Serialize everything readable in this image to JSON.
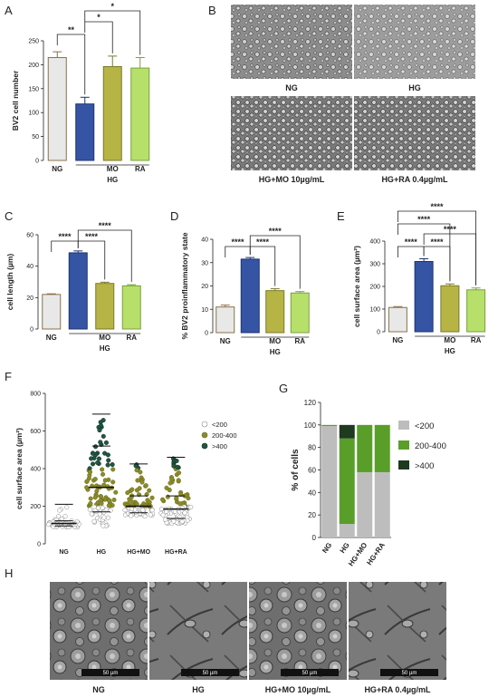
{
  "panel_labels": [
    "A",
    "B",
    "C",
    "D",
    "E",
    "F",
    "G",
    "H"
  ],
  "micrograph_b": {
    "captions": [
      "NG",
      "HG",
      "HG+MO 10µg/mL",
      "HG+RA 0.4µg/mL"
    ]
  },
  "micrograph_h": {
    "captions": [
      "NG",
      "HG",
      "HG+MO 10µg/mL",
      "HG+RA 0.4µg/mL"
    ],
    "scale_bar": "50 µm"
  },
  "colors": {
    "NG": "#e8e8e8",
    "HG": "#3554a4",
    "MO": "#b6b444",
    "RA": "#b6e06a",
    "edge_NG": "#8a7048",
    "lt200": "#bdbdbd",
    "r200_400": "#5a9e2a",
    "gt400": "#1f3a1f",
    "dot_lt200": "#ffffff",
    "dot_mid": "#8b8b2a",
    "dot_gt400": "#1e5a3a"
  },
  "chart_data": [
    {
      "id": "A",
      "type": "bar",
      "categories": [
        "NG",
        "HG",
        "MO",
        "RA"
      ],
      "group_label": "HG",
      "values": [
        215,
        118,
        196,
        193
      ],
      "errors": [
        12,
        14,
        22,
        22
      ],
      "ylabel": "BV2 cell number",
      "ylim": [
        0,
        250
      ],
      "yticks": [
        0,
        50,
        100,
        150,
        200,
        250
      ],
      "significance": [
        {
          "from": 0,
          "to": 1,
          "label": "**"
        },
        {
          "from": 1,
          "to": 2,
          "label": "*"
        },
        {
          "from": 1,
          "to": 3,
          "label": "*"
        }
      ]
    },
    {
      "id": "C",
      "type": "bar",
      "categories": [
        "NG",
        "HG",
        "MO",
        "RA"
      ],
      "group_label": "HG",
      "values": [
        22,
        48.5,
        29,
        27.5
      ],
      "errors": [
        0.4,
        1.2,
        0.8,
        0.7
      ],
      "ylabel": "cell length (µm)",
      "ylim": [
        0,
        60
      ],
      "yticks": [
        0,
        20,
        40,
        60
      ],
      "significance": [
        {
          "from": 0,
          "to": 1,
          "label": "****"
        },
        {
          "from": 1,
          "to": 2,
          "label": "****"
        },
        {
          "from": 1,
          "to": 3,
          "label": "****"
        }
      ]
    },
    {
      "id": "D",
      "type": "bar",
      "categories": [
        "NG",
        "HG",
        "MO",
        "RA"
      ],
      "group_label": "HG",
      "values": [
        11,
        31.5,
        18,
        17
      ],
      "errors": [
        0.8,
        0.7,
        0.8,
        0.6
      ],
      "ylabel": "% BV2 proinflammatory state",
      "ylim": [
        0,
        40
      ],
      "yticks": [
        0,
        10,
        20,
        30,
        40
      ],
      "significance": [
        {
          "from": 0,
          "to": 1,
          "label": "****"
        },
        {
          "from": 1,
          "to": 2,
          "label": "****"
        },
        {
          "from": 1,
          "to": 3,
          "label": "****"
        }
      ]
    },
    {
      "id": "E",
      "type": "bar",
      "categories": [
        "NG",
        "HG",
        "MO",
        "RA"
      ],
      "group_label": "HG",
      "values": [
        107,
        310,
        203,
        185
      ],
      "errors": [
        4,
        12,
        8,
        8
      ],
      "ylabel": "cell surface area (µm²)",
      "ylim": [
        0,
        400
      ],
      "yticks": [
        0,
        100,
        200,
        300,
        400
      ],
      "significance": [
        {
          "from": 0,
          "to": 1,
          "label": "****"
        },
        {
          "from": 1,
          "to": 2,
          "label": "****"
        },
        {
          "from": 1,
          "to": 3,
          "label": "****"
        },
        {
          "from": 0,
          "to": 2,
          "label": "****"
        },
        {
          "from": 0,
          "to": 3,
          "label": "****"
        }
      ]
    },
    {
      "id": "F",
      "type": "scatter",
      "categories": [
        "NG",
        "HG",
        "HG+MO",
        "HG+RA"
      ],
      "ylabel": "cell surface area (µm²)",
      "ylim": [
        0,
        800
      ],
      "yticks": [
        0,
        200,
        400,
        600,
        800
      ],
      "legend": [
        "<200",
        "200-400",
        ">400"
      ],
      "summary": [
        {
          "median": 108,
          "q1": 95,
          "q3": 122,
          "max": 210,
          "n": 55
        },
        {
          "median": 300,
          "q1": 170,
          "q3": 520,
          "max": 690,
          "n": 110
        },
        {
          "median": 200,
          "q1": 165,
          "q3": 255,
          "max": 425,
          "n": 90
        },
        {
          "median": 185,
          "q1": 135,
          "q3": 255,
          "max": 460,
          "n": 100
        }
      ]
    },
    {
      "id": "G",
      "type": "bar",
      "stacked": true,
      "categories": [
        "NG",
        "HG",
        "HG+MO",
        "HG+RA"
      ],
      "ylabel": "% of cells",
      "ylim": [
        0,
        120
      ],
      "yticks": [
        0,
        20,
        40,
        60,
        80,
        100,
        120
      ],
      "series": [
        {
          "name": "<200",
          "values": [
            99,
            12,
            58,
            58
          ]
        },
        {
          "name": "200-400",
          "values": [
            1,
            76,
            42,
            42
          ]
        },
        {
          "name": ">400",
          "values": [
            0,
            12,
            0,
            0
          ]
        }
      ]
    }
  ]
}
